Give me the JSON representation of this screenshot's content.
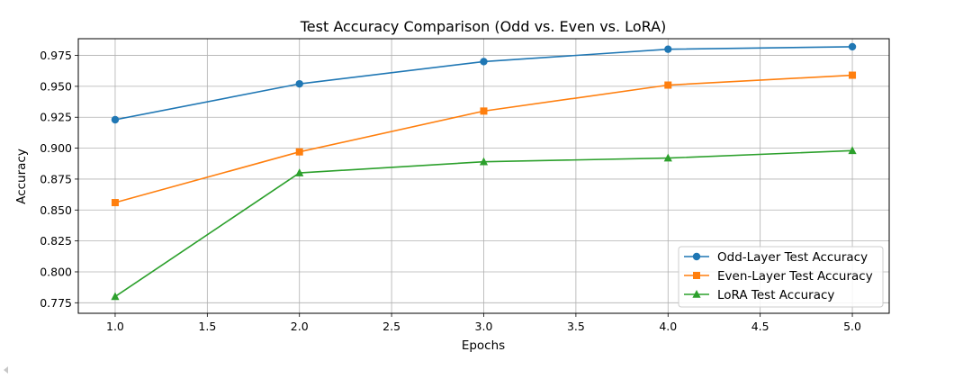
{
  "chart_data": {
    "type": "line",
    "title": "Test Accuracy Comparison (Odd vs. Even vs. LoRA)",
    "xlabel": "Epochs",
    "ylabel": "Accuracy",
    "xlim": [
      0.8,
      5.2
    ],
    "ylim": [
      0.7665,
      0.9885
    ],
    "xticks": [
      1.0,
      1.5,
      2.0,
      2.5,
      3.0,
      3.5,
      4.0,
      4.5,
      5.0
    ],
    "xtick_labels": [
      "1.0",
      "1.5",
      "2.0",
      "2.5",
      "3.0",
      "3.5",
      "4.0",
      "4.5",
      "5.0"
    ],
    "yticks": [
      0.775,
      0.8,
      0.825,
      0.85,
      0.875,
      0.9,
      0.925,
      0.95,
      0.975
    ],
    "ytick_labels": [
      "0.775",
      "0.800",
      "0.825",
      "0.850",
      "0.875",
      "0.900",
      "0.925",
      "0.950",
      "0.975"
    ],
    "grid": true,
    "legend_position": "lower-right",
    "x": [
      1,
      2,
      3,
      4,
      5
    ],
    "series": [
      {
        "name": "Odd-Layer Test Accuracy",
        "values": [
          0.923,
          0.952,
          0.97,
          0.98,
          0.982
        ],
        "color": "#1f77b4",
        "marker": "circle"
      },
      {
        "name": "Even-Layer Test Accuracy",
        "values": [
          0.856,
          0.897,
          0.93,
          0.951,
          0.959
        ],
        "color": "#ff7f0e",
        "marker": "square"
      },
      {
        "name": "LoRA Test Accuracy",
        "values": [
          0.78,
          0.88,
          0.889,
          0.892,
          0.898
        ],
        "color": "#2ca02c",
        "marker": "triangle"
      }
    ]
  }
}
